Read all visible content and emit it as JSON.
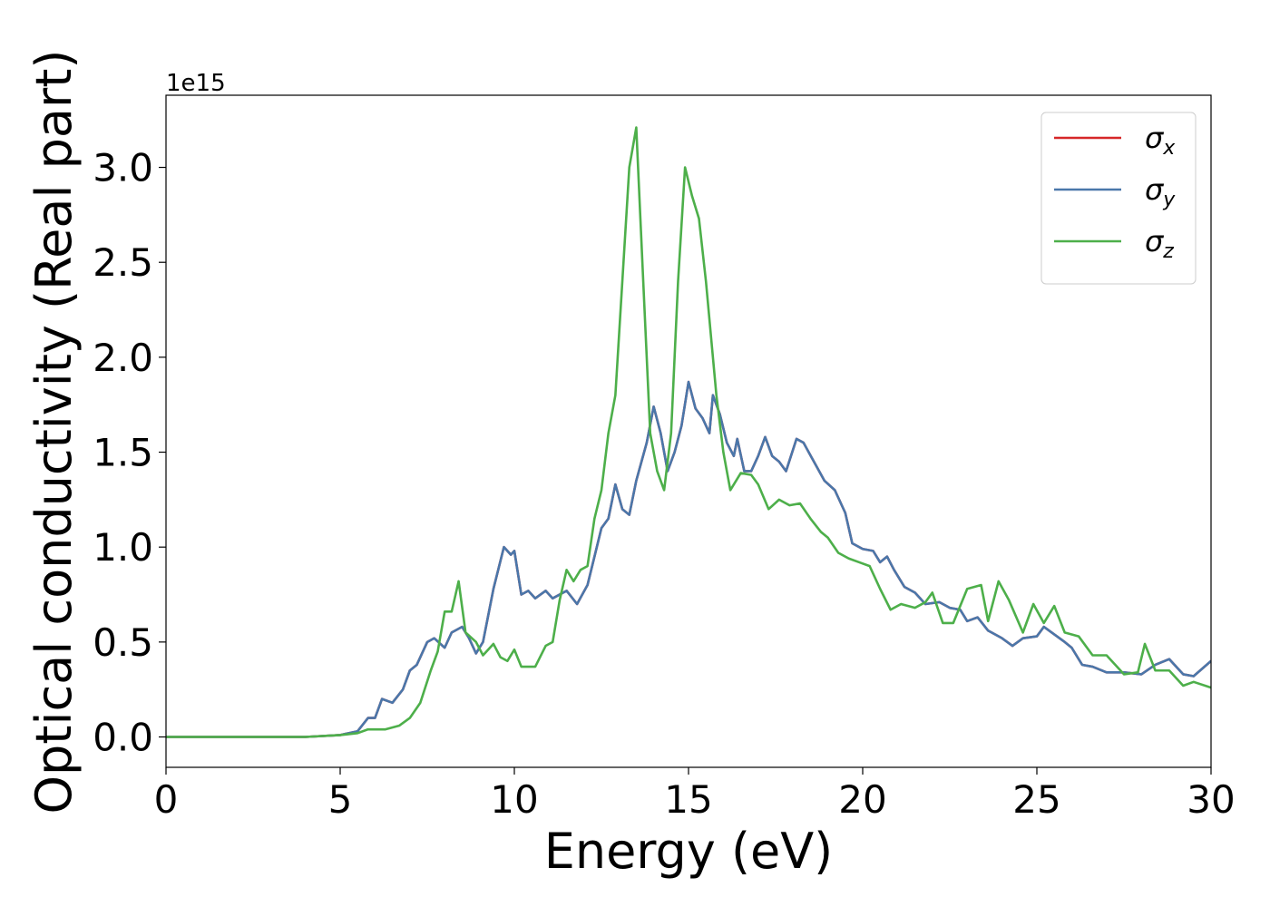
{
  "chart_data": {
    "type": "line",
    "xlabel": "Energy (eV)",
    "ylabel": "Optical conductivity (Real part)",
    "y_offset_label": "1e15",
    "xlim": [
      0,
      30
    ],
    "xticks": [
      0,
      5,
      10,
      15,
      20,
      25,
      30
    ],
    "ylim": [
      -0.16,
      3.38
    ],
    "yticks": [
      {
        "value": 0,
        "label": "0.0"
      },
      0.5,
      {
        "value": 1,
        "label": "1.0"
      },
      1.5,
      {
        "value": 2,
        "label": "2.0"
      },
      2.5,
      {
        "value": 3,
        "label": "3.0"
      }
    ],
    "grid": false,
    "legend": "upper right",
    "series": [
      {
        "name": "σx",
        "color": "#d62728",
        "x": [
          0,
          4,
          5,
          5.5,
          5.8,
          6,
          6.2,
          6.5,
          6.8,
          7,
          7.2,
          7.5,
          7.7,
          8,
          8.2,
          8.5,
          8.7,
          8.9,
          9.1,
          9.4,
          9.7,
          9.9,
          10,
          10.2,
          10.4,
          10.6,
          10.9,
          11.1,
          11.5,
          11.8,
          12.1,
          12.3,
          12.5,
          12.7,
          12.9,
          13.1,
          13.3,
          13.5,
          13.8,
          14,
          14.2,
          14.4,
          14.6,
          14.8,
          15,
          15.2,
          15.4,
          15.6,
          15.7,
          15.9,
          16.1,
          16.3,
          16.4,
          16.6,
          16.8,
          17,
          17.2,
          17.4,
          17.6,
          17.8,
          18.1,
          18.3,
          18.6,
          18.9,
          19.2,
          19.5,
          19.7,
          20,
          20.3,
          20.5,
          20.7,
          20.9,
          21.2,
          21.5,
          21.8,
          22.2,
          22.5,
          22.8,
          23,
          23.3,
          23.6,
          24,
          24.3,
          24.6,
          25,
          25.2,
          25.5,
          25.8,
          26,
          26.3,
          26.6,
          27,
          27.5,
          28,
          28.4,
          28.8,
          29.2,
          29.5,
          30
        ],
        "values": [
          0,
          0,
          0.01,
          0.03,
          0.1,
          0.1,
          0.2,
          0.18,
          0.25,
          0.35,
          0.38,
          0.5,
          0.52,
          0.47,
          0.55,
          0.58,
          0.52,
          0.44,
          0.5,
          0.78,
          1.0,
          0.96,
          0.98,
          0.75,
          0.77,
          0.73,
          0.77,
          0.73,
          0.77,
          0.7,
          0.8,
          0.95,
          1.1,
          1.15,
          1.33,
          1.2,
          1.17,
          1.35,
          1.55,
          1.74,
          1.6,
          1.4,
          1.5,
          1.64,
          1.87,
          1.73,
          1.68,
          1.6,
          1.8,
          1.7,
          1.55,
          1.48,
          1.57,
          1.4,
          1.4,
          1.48,
          1.58,
          1.48,
          1.45,
          1.4,
          1.57,
          1.55,
          1.45,
          1.35,
          1.3,
          1.18,
          1.02,
          0.99,
          0.98,
          0.92,
          0.95,
          0.88,
          0.79,
          0.76,
          0.7,
          0.71,
          0.68,
          0.67,
          0.61,
          0.63,
          0.56,
          0.52,
          0.48,
          0.52,
          0.53,
          0.58,
          0.54,
          0.5,
          0.47,
          0.38,
          0.37,
          0.34,
          0.34,
          0.33,
          0.38,
          0.41,
          0.33,
          0.32,
          0.4
        ]
      },
      {
        "name": "σy",
        "color": "#4a77aa",
        "x": [
          0,
          4,
          5,
          5.5,
          5.8,
          6,
          6.2,
          6.5,
          6.8,
          7,
          7.2,
          7.5,
          7.7,
          8,
          8.2,
          8.5,
          8.7,
          8.9,
          9.1,
          9.4,
          9.7,
          9.9,
          10,
          10.2,
          10.4,
          10.6,
          10.9,
          11.1,
          11.5,
          11.8,
          12.1,
          12.3,
          12.5,
          12.7,
          12.9,
          13.1,
          13.3,
          13.5,
          13.8,
          14,
          14.2,
          14.4,
          14.6,
          14.8,
          15,
          15.2,
          15.4,
          15.6,
          15.7,
          15.9,
          16.1,
          16.3,
          16.4,
          16.6,
          16.8,
          17,
          17.2,
          17.4,
          17.6,
          17.8,
          18.1,
          18.3,
          18.6,
          18.9,
          19.2,
          19.5,
          19.7,
          20,
          20.3,
          20.5,
          20.7,
          20.9,
          21.2,
          21.5,
          21.8,
          22.2,
          22.5,
          22.8,
          23,
          23.3,
          23.6,
          24,
          24.3,
          24.6,
          25,
          25.2,
          25.5,
          25.8,
          26,
          26.3,
          26.6,
          27,
          27.5,
          28,
          28.4,
          28.8,
          29.2,
          29.5,
          30
        ],
        "values": [
          0,
          0,
          0.01,
          0.03,
          0.1,
          0.1,
          0.2,
          0.18,
          0.25,
          0.35,
          0.38,
          0.5,
          0.52,
          0.47,
          0.55,
          0.58,
          0.52,
          0.44,
          0.5,
          0.78,
          1.0,
          0.96,
          0.98,
          0.75,
          0.77,
          0.73,
          0.77,
          0.73,
          0.77,
          0.7,
          0.8,
          0.95,
          1.1,
          1.15,
          1.33,
          1.2,
          1.17,
          1.35,
          1.55,
          1.74,
          1.6,
          1.4,
          1.5,
          1.64,
          1.87,
          1.73,
          1.68,
          1.6,
          1.8,
          1.7,
          1.55,
          1.48,
          1.57,
          1.4,
          1.4,
          1.48,
          1.58,
          1.48,
          1.45,
          1.4,
          1.57,
          1.55,
          1.45,
          1.35,
          1.3,
          1.18,
          1.02,
          0.99,
          0.98,
          0.92,
          0.95,
          0.88,
          0.79,
          0.76,
          0.7,
          0.71,
          0.68,
          0.67,
          0.61,
          0.63,
          0.56,
          0.52,
          0.48,
          0.52,
          0.53,
          0.58,
          0.54,
          0.5,
          0.47,
          0.38,
          0.37,
          0.34,
          0.34,
          0.33,
          0.38,
          0.41,
          0.33,
          0.32,
          0.4
        ]
      },
      {
        "name": "σz",
        "color": "#4daf4a",
        "x": [
          0,
          4,
          5,
          5.5,
          5.8,
          6.3,
          6.7,
          7,
          7.3,
          7.6,
          7.8,
          8,
          8.2,
          8.4,
          8.6,
          8.9,
          9.1,
          9.4,
          9.6,
          9.8,
          10,
          10.2,
          10.6,
          10.9,
          11.1,
          11.3,
          11.5,
          11.7,
          11.9,
          12.1,
          12.3,
          12.5,
          12.7,
          12.9,
          13.1,
          13.3,
          13.5,
          13.7,
          13.9,
          14.1,
          14.3,
          14.5,
          14.7,
          14.9,
          15.1,
          15.3,
          15.5,
          15.8,
          16,
          16.2,
          16.5,
          16.8,
          17,
          17.3,
          17.6,
          17.9,
          18.2,
          18.5,
          18.8,
          19,
          19.3,
          19.6,
          19.9,
          20.2,
          20.5,
          20.8,
          21.1,
          21.5,
          21.8,
          22,
          22.3,
          22.6,
          23,
          23.4,
          23.6,
          23.9,
          24.2,
          24.6,
          24.9,
          25.2,
          25.5,
          25.8,
          26.2,
          26.6,
          27,
          27.5,
          27.9,
          28.1,
          28.4,
          28.8,
          29.2,
          29.5,
          30
        ],
        "values": [
          0,
          0,
          0.01,
          0.02,
          0.04,
          0.04,
          0.06,
          0.1,
          0.18,
          0.35,
          0.45,
          0.66,
          0.66,
          0.82,
          0.55,
          0.5,
          0.43,
          0.49,
          0.42,
          0.4,
          0.46,
          0.37,
          0.37,
          0.48,
          0.5,
          0.72,
          0.88,
          0.82,
          0.88,
          0.9,
          1.15,
          1.3,
          1.6,
          1.8,
          2.4,
          3.0,
          3.21,
          2.4,
          1.6,
          1.4,
          1.3,
          1.6,
          2.4,
          3.0,
          2.85,
          2.73,
          2.4,
          1.8,
          1.5,
          1.3,
          1.39,
          1.38,
          1.33,
          1.2,
          1.25,
          1.22,
          1.23,
          1.15,
          1.08,
          1.05,
          0.97,
          0.94,
          0.92,
          0.9,
          0.78,
          0.67,
          0.7,
          0.68,
          0.71,
          0.76,
          0.6,
          0.6,
          0.78,
          0.8,
          0.61,
          0.82,
          0.72,
          0.55,
          0.7,
          0.6,
          0.69,
          0.55,
          0.53,
          0.43,
          0.43,
          0.33,
          0.34,
          0.49,
          0.35,
          0.35,
          0.27,
          0.29,
          0.26
        ]
      }
    ]
  }
}
